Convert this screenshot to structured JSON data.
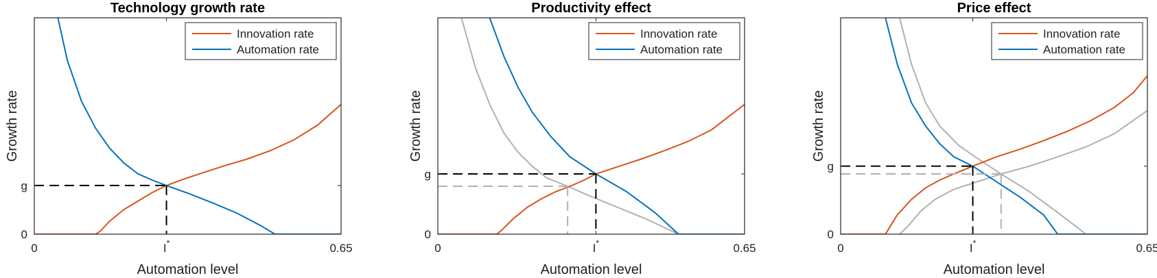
{
  "chart_data": [
    {
      "type": "line",
      "title": "Technology growth rate",
      "xlabel": "Automation level",
      "ylabel": "Growth rate",
      "xlim": [
        0,
        0.65
      ],
      "ylim": [
        0,
        0.28
      ],
      "xticks": [
        {
          "value": 0,
          "label": "0"
        },
        {
          "value": 0.28,
          "label": "I",
          "sup": "*"
        },
        {
          "value": 0.65,
          "label": "0.65"
        }
      ],
      "yticks": [
        {
          "value": 0,
          "label": "0"
        },
        {
          "value": 0.063,
          "label": "g"
        }
      ],
      "legend": {
        "position": "top-right",
        "entries": [
          "Innovation rate",
          "Automation rate"
        ]
      },
      "series": [
        {
          "name": "Innovation rate",
          "color": "#d95319",
          "x": [
            0,
            0.13,
            0.14,
            0.16,
            0.19,
            0.22,
            0.25,
            0.28,
            0.32,
            0.36,
            0.4,
            0.45,
            0.5,
            0.55,
            0.6,
            0.65
          ],
          "y": [
            0,
            0,
            0.004,
            0.017,
            0.032,
            0.043,
            0.054,
            0.063,
            0.072,
            0.08,
            0.088,
            0.097,
            0.108,
            0.122,
            0.141,
            0.168
          ]
        },
        {
          "name": "Automation rate",
          "color": "#0072bd",
          "x": [
            0.05,
            0.07,
            0.1,
            0.13,
            0.16,
            0.19,
            0.22,
            0.25,
            0.28,
            0.33,
            0.38,
            0.43,
            0.48,
            0.51,
            0.65
          ],
          "y": [
            0.28,
            0.225,
            0.172,
            0.137,
            0.111,
            0.092,
            0.078,
            0.07,
            0.063,
            0.052,
            0.04,
            0.027,
            0.011,
            0,
            0
          ]
        }
      ],
      "reference_series": [],
      "reference_lines": [
        {
          "color": "#000000",
          "x_start": 0,
          "x": 0.28,
          "y": 0.063
        }
      ]
    },
    {
      "type": "line",
      "title": "Productivity effect",
      "xlabel": "Automation level",
      "ylabel": "Growth rate",
      "xlim": [
        0,
        0.65
      ],
      "ylim": [
        0,
        0.28
      ],
      "xticks": [
        {
          "value": 0,
          "label": "0"
        },
        {
          "value": 0.335,
          "label": "I",
          "sup": "*"
        },
        {
          "value": 0.65,
          "label": "0.65"
        }
      ],
      "yticks": [
        {
          "value": 0,
          "label": "0"
        },
        {
          "value": 0.078,
          "label": "g"
        }
      ],
      "legend": {
        "position": "top-right",
        "entries": [
          "Innovation rate",
          "Automation rate"
        ]
      },
      "series": [
        {
          "name": "Innovation rate",
          "color": "#d95319",
          "x": [
            0,
            0.125,
            0.135,
            0.16,
            0.19,
            0.22,
            0.25,
            0.28,
            0.31,
            0.335,
            0.38,
            0.43,
            0.48,
            0.53,
            0.58,
            0.65
          ],
          "y": [
            0,
            0,
            0.005,
            0.02,
            0.035,
            0.046,
            0.055,
            0.062,
            0.07,
            0.078,
            0.087,
            0.097,
            0.108,
            0.12,
            0.135,
            0.168
          ]
        },
        {
          "name": "Automation rate",
          "color": "#0072bd",
          "x": [
            0.11,
            0.14,
            0.17,
            0.2,
            0.24,
            0.28,
            0.335,
            0.4,
            0.46,
            0.51,
            0.65
          ],
          "y": [
            0.28,
            0.23,
            0.19,
            0.158,
            0.126,
            0.1,
            0.078,
            0.055,
            0.028,
            0,
            0
          ]
        }
      ],
      "reference_series": [
        {
          "color": "#b0b0b0",
          "x": [
            0.05,
            0.08,
            0.11,
            0.14,
            0.17,
            0.2,
            0.23,
            0.275,
            0.32,
            0.38,
            0.44,
            0.51
          ],
          "y": [
            0.28,
            0.215,
            0.168,
            0.131,
            0.106,
            0.088,
            0.073,
            0.062,
            0.05,
            0.035,
            0.02,
            0
          ]
        }
      ],
      "reference_lines": [
        {
          "color": "#000000",
          "x_start": 0,
          "x": 0.335,
          "y": 0.078
        },
        {
          "color": "#b0b0b0",
          "x_start": 0,
          "x": 0.275,
          "y": 0.062
        }
      ]
    },
    {
      "type": "line",
      "title": "Price effect",
      "xlabel": "Automation level",
      "ylabel": "Growth rate",
      "xlim": [
        0,
        0.65
      ],
      "ylim": [
        0,
        0.28
      ],
      "xticks": [
        {
          "value": 0,
          "label": "0"
        },
        {
          "value": 0.28,
          "label": "I",
          "sup": "*"
        },
        {
          "value": 0.65,
          "label": "0.65"
        }
      ],
      "yticks": [
        {
          "value": 0,
          "label": "0"
        },
        {
          "value": 0.088,
          "label": "g"
        }
      ],
      "legend": {
        "position": "top-right",
        "entries": [
          "Innovation rate",
          "Automation rate"
        ]
      },
      "series": [
        {
          "name": "Innovation rate",
          "color": "#d95319",
          "x": [
            0,
            0.095,
            0.105,
            0.12,
            0.15,
            0.18,
            0.21,
            0.24,
            0.28,
            0.33,
            0.38,
            0.43,
            0.48,
            0.53,
            0.58,
            0.62,
            0.65
          ],
          "y": [
            0,
            0,
            0.01,
            0.025,
            0.045,
            0.06,
            0.07,
            0.078,
            0.088,
            0.1,
            0.11,
            0.121,
            0.133,
            0.147,
            0.164,
            0.183,
            0.205
          ]
        },
        {
          "name": "Automation rate",
          "color": "#0072bd",
          "x": [
            0.095,
            0.12,
            0.15,
            0.18,
            0.21,
            0.24,
            0.28,
            0.33,
            0.38,
            0.43,
            0.46,
            0.65
          ],
          "y": [
            0.28,
            0.22,
            0.17,
            0.14,
            0.117,
            0.1,
            0.088,
            0.068,
            0.048,
            0.025,
            0,
            0
          ]
        }
      ],
      "reference_series": [
        {
          "color": "#b0b0b0",
          "x": [
            0.125,
            0.145,
            0.17,
            0.2,
            0.24,
            0.28,
            0.34,
            0.4,
            0.46,
            0.52,
            0.58,
            0.65
          ],
          "y": [
            0,
            0.012,
            0.03,
            0.045,
            0.058,
            0.066,
            0.078,
            0.088,
            0.1,
            0.113,
            0.13,
            0.16
          ]
        },
        {
          "color": "#b0b0b0",
          "x": [
            0.125,
            0.15,
            0.18,
            0.21,
            0.25,
            0.29,
            0.34,
            0.4,
            0.46,
            0.52
          ],
          "y": [
            0.28,
            0.22,
            0.17,
            0.14,
            0.115,
            0.098,
            0.078,
            0.055,
            0.028,
            0
          ]
        }
      ],
      "reference_lines": [
        {
          "color": "#000000",
          "x_start": 0,
          "x": 0.28,
          "y": 0.088
        },
        {
          "color": "#b0b0b0",
          "x_start": 0,
          "x": 0.34,
          "y": 0.078
        }
      ]
    }
  ]
}
